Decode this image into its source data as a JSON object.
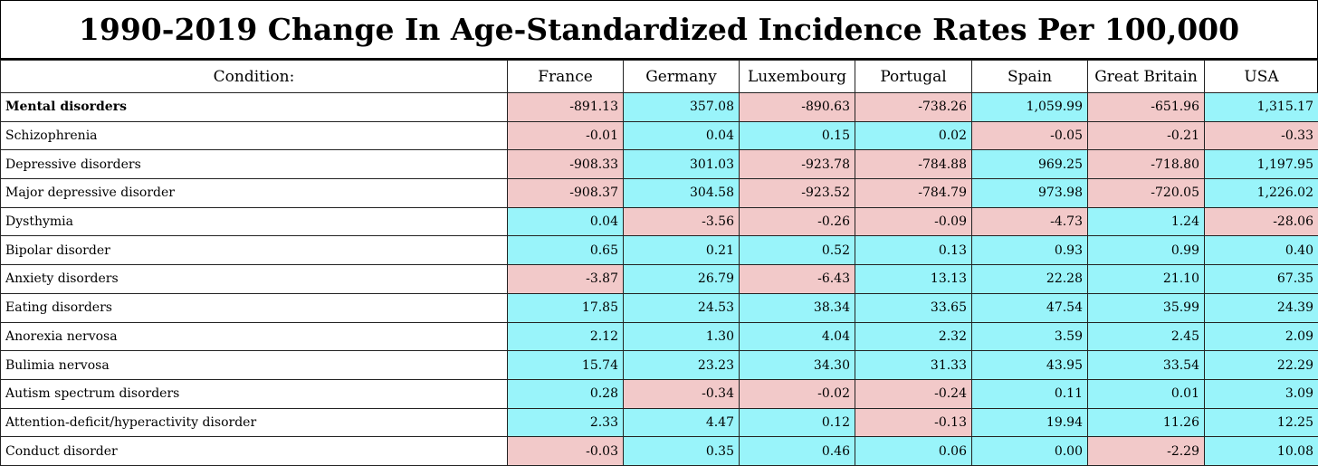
{
  "title": "1990-2019 Change In Age-Standardized Incidence Rates Per 100,000",
  "colors": {
    "negative": "#f2c9c9",
    "positive": "#99f4fa"
  },
  "chart_data": {
    "type": "table",
    "title": "1990-2019 Change In Age-Standardized Incidence Rates Per 100,000",
    "columns": [
      "Condition:",
      "France",
      "Germany",
      "Luxembourg",
      "Portugal",
      "Spain",
      "Great Britain",
      "USA"
    ],
    "rows": [
      {
        "condition": "Mental disorders",
        "bold": true,
        "values": [
          "-891.13",
          "357.08",
          "-890.63",
          "-738.26",
          "1,059.99",
          "-651.96",
          "1,315.17"
        ]
      },
      {
        "condition": "Schizophrenia",
        "values": [
          "-0.01",
          "0.04",
          "0.15",
          "0.02",
          "-0.05",
          "-0.21",
          "-0.33"
        ]
      },
      {
        "condition": "Depressive disorders",
        "values": [
          "-908.33",
          "301.03",
          "-923.78",
          "-784.88",
          "969.25",
          "-718.80",
          "1,197.95"
        ]
      },
      {
        "condition": "Major depressive disorder",
        "values": [
          "-908.37",
          "304.58",
          "-923.52",
          "-784.79",
          "973.98",
          "-720.05",
          "1,226.02"
        ]
      },
      {
        "condition": "Dysthymia",
        "values": [
          "0.04",
          "-3.56",
          "-0.26",
          "-0.09",
          "-4.73",
          "1.24",
          "-28.06"
        ]
      },
      {
        "condition": "Bipolar disorder",
        "values": [
          "0.65",
          "0.21",
          "0.52",
          "0.13",
          "0.93",
          "0.99",
          "0.40"
        ]
      },
      {
        "condition": "Anxiety disorders",
        "values": [
          "-3.87",
          "26.79",
          "-6.43",
          "13.13",
          "22.28",
          "21.10",
          "67.35"
        ]
      },
      {
        "condition": "Eating disorders",
        "values": [
          "17.85",
          "24.53",
          "38.34",
          "33.65",
          "47.54",
          "35.99",
          "24.39"
        ]
      },
      {
        "condition": "Anorexia nervosa",
        "values": [
          "2.12",
          "1.30",
          "4.04",
          "2.32",
          "3.59",
          "2.45",
          "2.09"
        ]
      },
      {
        "condition": "Bulimia nervosa",
        "values": [
          "15.74",
          "23.23",
          "34.30",
          "31.33",
          "43.95",
          "33.54",
          "22.29"
        ]
      },
      {
        "condition": "Autism spectrum disorders",
        "values": [
          "0.28",
          "-0.34",
          "-0.02",
          "-0.24",
          "0.11",
          "0.01",
          "3.09"
        ]
      },
      {
        "condition": "Attention-deficit/hyperactivity disorder",
        "values": [
          "2.33",
          "4.47",
          "0.12",
          "-0.13",
          "19.94",
          "11.26",
          "12.25"
        ]
      },
      {
        "condition": "Conduct disorder",
        "values": [
          "-0.03",
          "0.35",
          "0.46",
          "0.06",
          "0.00",
          "-2.29",
          "10.08"
        ]
      }
    ]
  }
}
